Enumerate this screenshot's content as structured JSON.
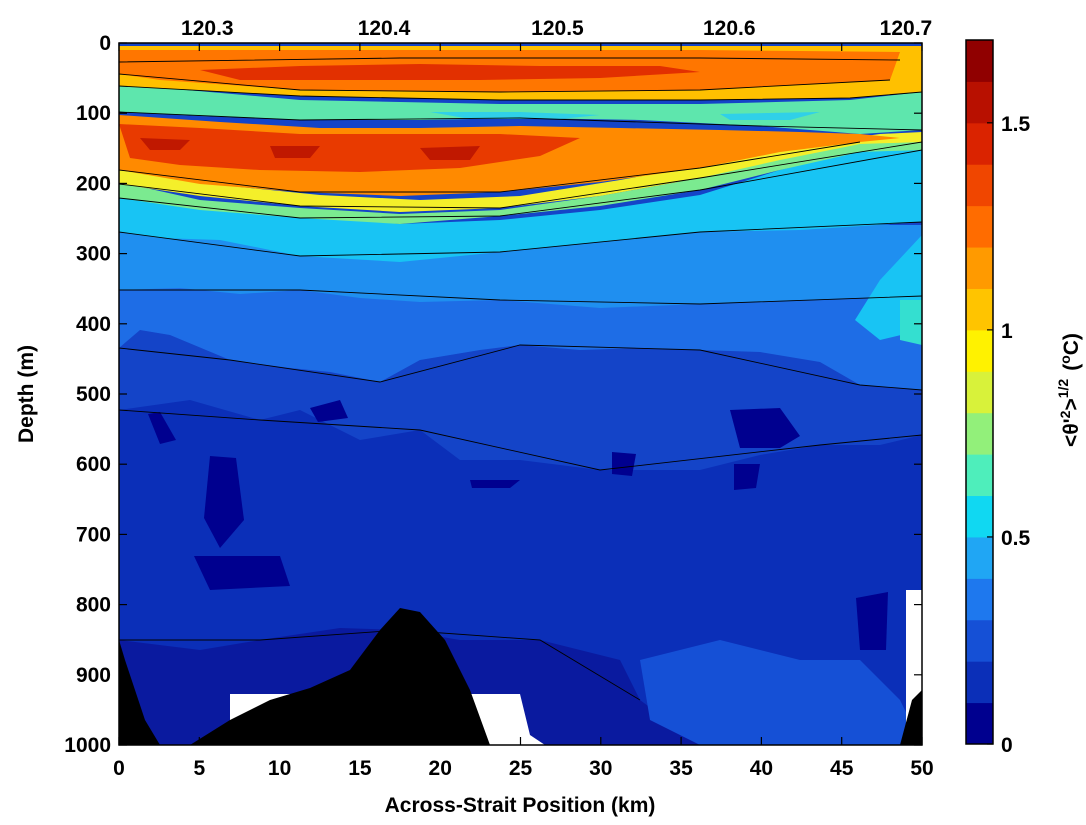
{
  "chart_data": {
    "type": "heatmap",
    "title": "",
    "xlabel": "Across-Strait Position (km)",
    "ylabel": "Depth (m)",
    "xlim": [
      0,
      50
    ],
    "ylim": [
      1000,
      0
    ],
    "x_ticks": [
      "0",
      "5",
      "10",
      "15",
      "20",
      "25",
      "30",
      "35",
      "40",
      "45",
      "50"
    ],
    "y_ticks": [
      "0",
      "100",
      "200",
      "300",
      "400",
      "500",
      "600",
      "700",
      "800",
      "900",
      "1000"
    ],
    "top_axis": {
      "label": "",
      "ticks": [
        "120.3",
        "120.4",
        "120.5",
        "120.6",
        "120.7"
      ],
      "tick_positions_km": [
        5.5,
        16.5,
        27.3,
        38.0,
        49.0
      ]
    },
    "colorbar": {
      "label": "<θ'²>^1/2 (°C)",
      "label_main": "<θ'",
      "label_sq": "2",
      "label_close": ">",
      "label_exp": "1/2",
      "label_unit": "(",
      "label_deg": "o",
      "label_end": "C)",
      "range": [
        0,
        1.7
      ],
      "ticks": [
        "0",
        "0.5",
        "1",
        "1.5"
      ],
      "tick_values": [
        0,
        0.5,
        1,
        1.5
      ],
      "levels": [
        "#00008f",
        "#0b2fb8",
        "#1550d6",
        "#1e78ee",
        "#20a6f4",
        "#10d8f2",
        "#4eeebb",
        "#92f07a",
        "#d8f23a",
        "#fff200",
        "#ffc400",
        "#ff9a00",
        "#ff6c00",
        "#f04600",
        "#da2300",
        "#b81000",
        "#900000"
      ]
    },
    "description_values": {
      "surface_layer_max": 1.55,
      "subsurface_layer_max": 1.65,
      "deep_background": 0.2
    }
  }
}
